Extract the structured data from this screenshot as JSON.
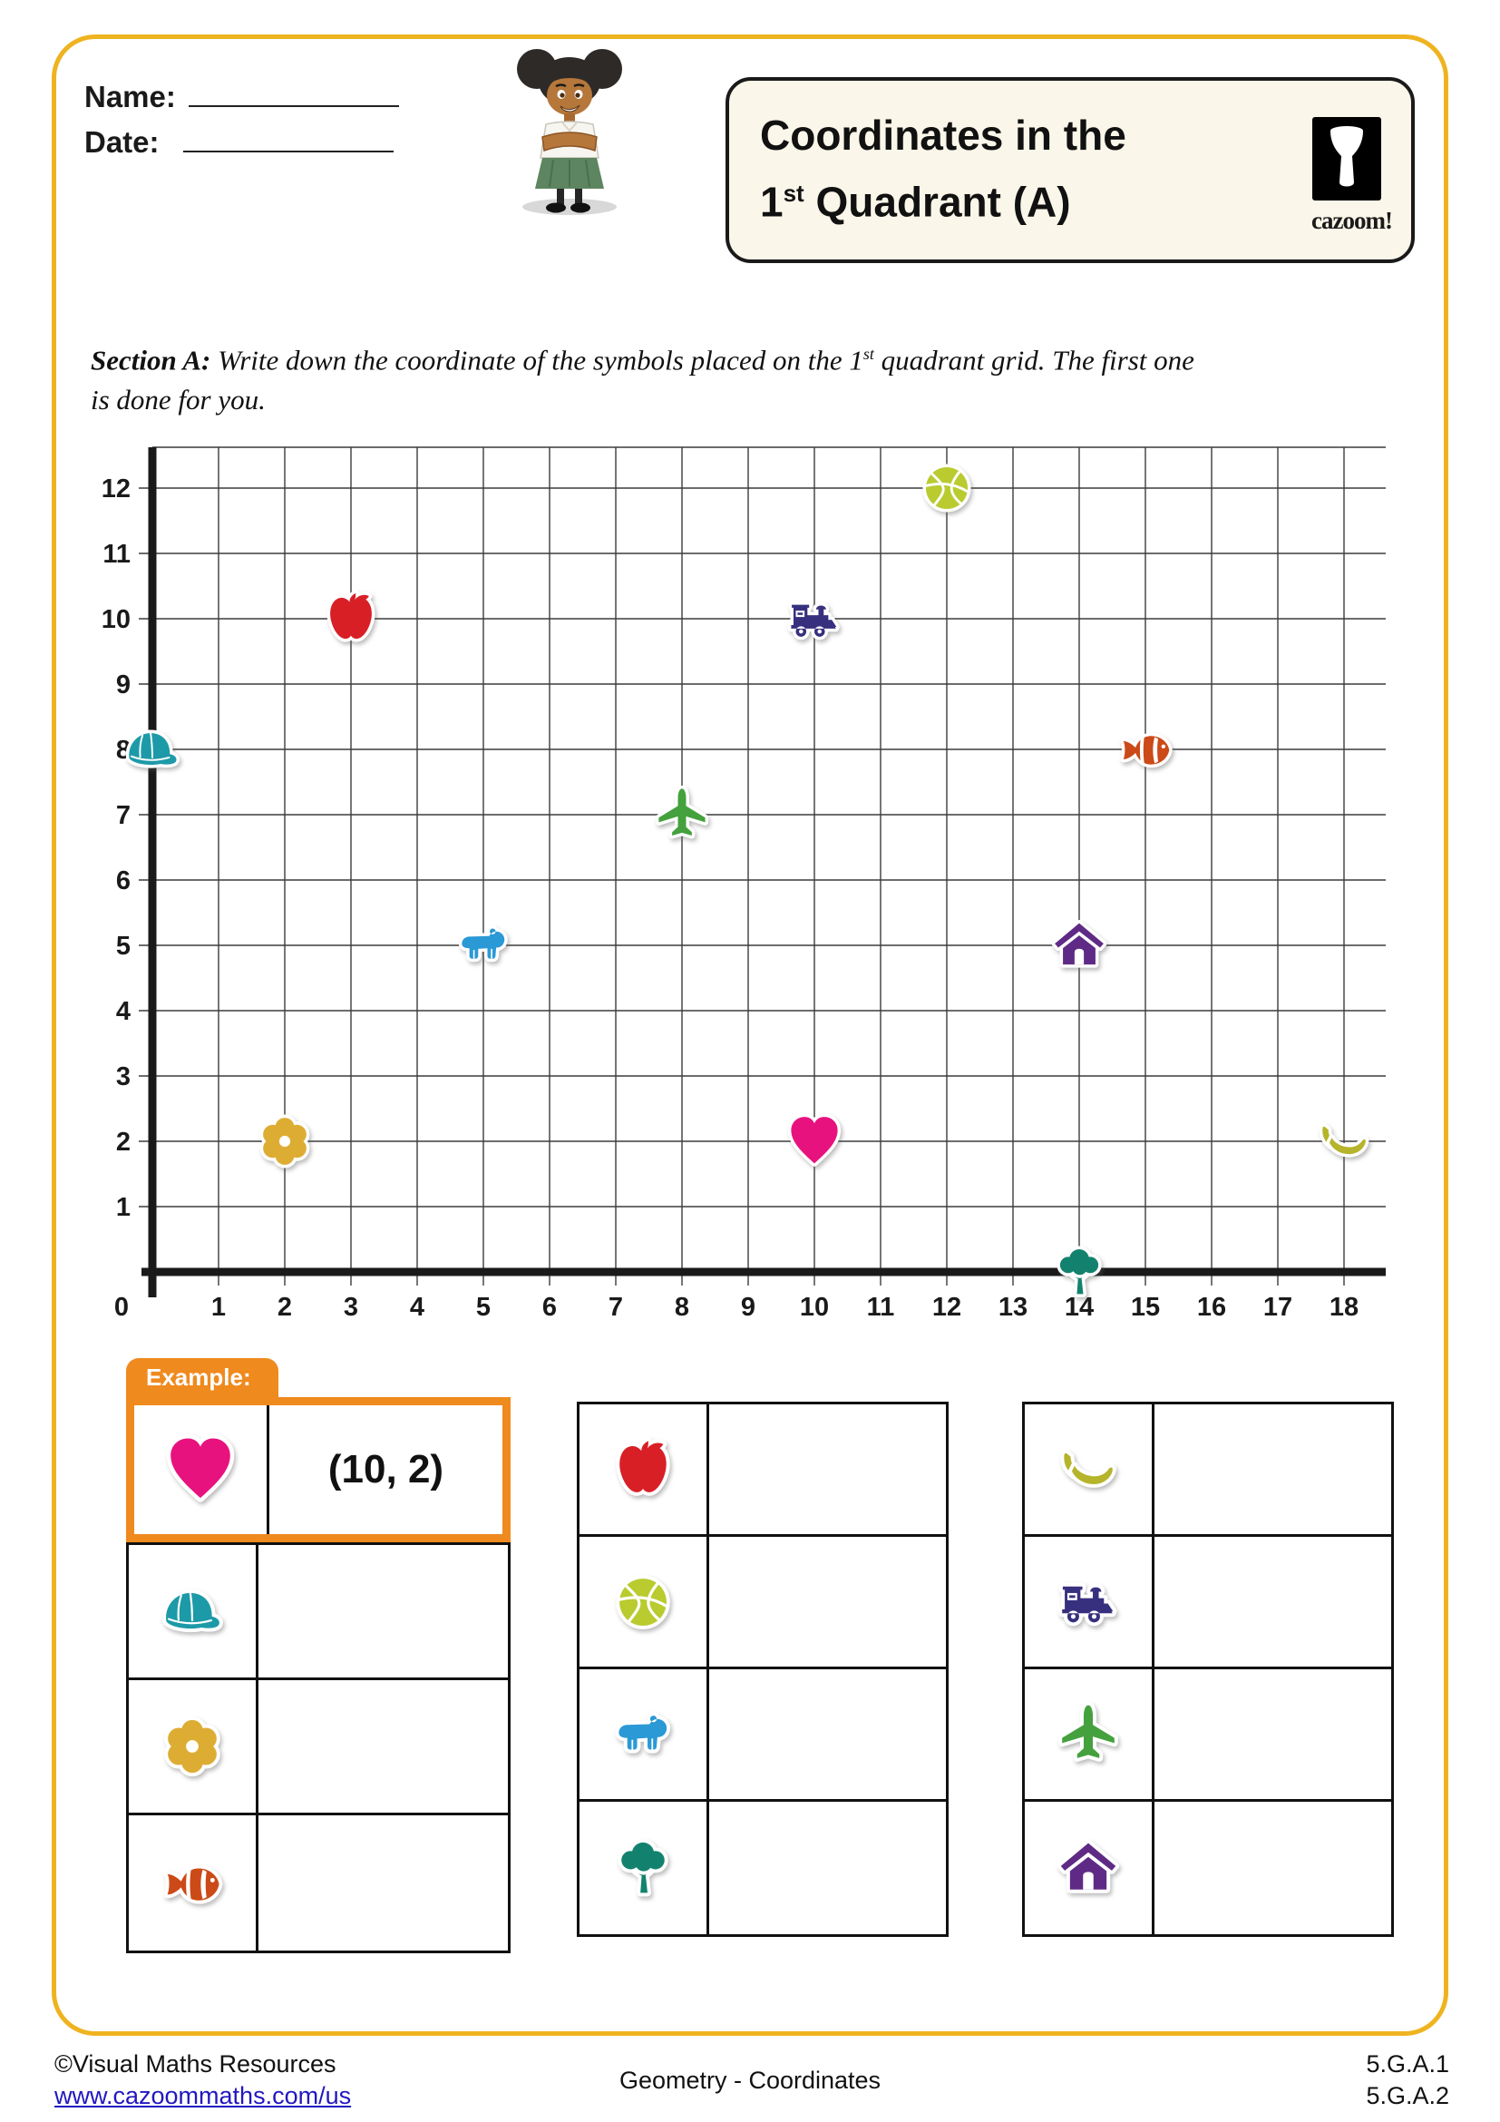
{
  "header": {
    "name_label": "Name:",
    "date_label": "Date:",
    "title_line1": "Coordinates in the",
    "title_line2_base": "1",
    "title_line2_sup": "st",
    "title_line2_rest": " Quadrant (A)",
    "logo_text": "cazoom!"
  },
  "section_a": {
    "label": "Section A:",
    "line1_pre": "  Write down the coordinate of the symbols placed on the 1",
    "line1_sup": "st",
    "line1_post": " quadrant grid. The first one",
    "line2": "is done for you."
  },
  "chart_data": {
    "type": "scatter",
    "title": "Coordinates in the 1st Quadrant (A)",
    "xlabel": "",
    "ylabel": "",
    "x_range": [
      0,
      18
    ],
    "y_range": [
      0,
      12
    ],
    "x_ticks": [
      1,
      2,
      3,
      4,
      5,
      6,
      7,
      8,
      9,
      10,
      11,
      12,
      13,
      14,
      15,
      16,
      17,
      18
    ],
    "y_ticks": [
      1,
      2,
      3,
      4,
      5,
      6,
      7,
      8,
      9,
      10,
      11,
      12
    ],
    "origin_label": "0",
    "grid": true,
    "points": [
      {
        "symbol": "cap",
        "x": 0,
        "y": 8
      },
      {
        "symbol": "flower",
        "x": 2,
        "y": 2
      },
      {
        "symbol": "apple",
        "x": 3,
        "y": 10
      },
      {
        "symbol": "bear",
        "x": 5,
        "y": 5
      },
      {
        "symbol": "airplane",
        "x": 8,
        "y": 7
      },
      {
        "symbol": "train",
        "x": 10,
        "y": 10
      },
      {
        "symbol": "heart",
        "x": 10,
        "y": 2
      },
      {
        "symbol": "basketball",
        "x": 12,
        "y": 12
      },
      {
        "symbol": "house",
        "x": 14,
        "y": 5
      },
      {
        "symbol": "tree",
        "x": 14,
        "y": 0
      },
      {
        "symbol": "fish",
        "x": 15,
        "y": 8
      },
      {
        "symbol": "banana",
        "x": 18,
        "y": 2
      }
    ]
  },
  "symbol_colors": {
    "heart": "#e8127f",
    "cap": "#1d9aa8",
    "flower": "#ddad33",
    "fish": "#cc4a17",
    "apple": "#d91f26",
    "basketball": "#b9cb2f",
    "bear": "#2b99d6",
    "tree": "#12826e",
    "banana": "#b5b42a",
    "train": "#37307f",
    "airplane": "#44a13d",
    "house": "#5f2a85"
  },
  "example": {
    "tab_label": "Example:",
    "symbol": "heart",
    "value": "(10, 2)"
  },
  "tables": [
    {
      "rows": [
        {
          "symbol": "cap"
        },
        {
          "symbol": "flower"
        },
        {
          "symbol": "fish"
        }
      ]
    },
    {
      "rows": [
        {
          "symbol": "apple"
        },
        {
          "symbol": "basketball"
        },
        {
          "symbol": "bear"
        },
        {
          "symbol": "tree"
        }
      ]
    },
    {
      "rows": [
        {
          "symbol": "banana"
        },
        {
          "symbol": "train"
        },
        {
          "symbol": "airplane"
        },
        {
          "symbol": "house"
        }
      ]
    }
  ],
  "footer": {
    "copyright": "©Visual Maths Resources",
    "link": "www.cazoommaths.com/us",
    "center": "Geometry - Coordinates",
    "standard1": "5.G.A.1",
    "standard2": "5.G.A.2"
  }
}
